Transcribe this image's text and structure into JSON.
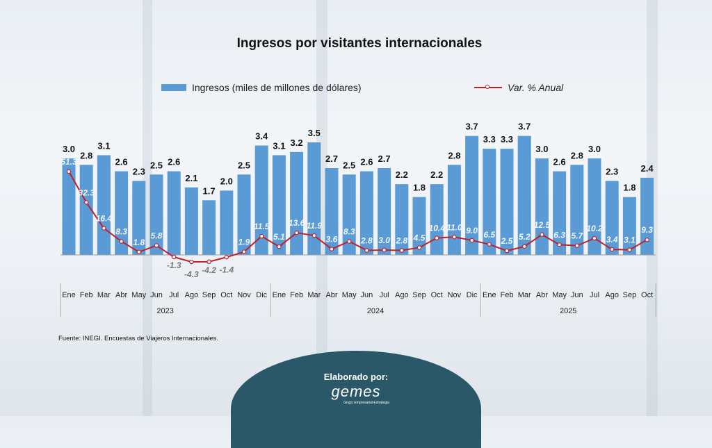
{
  "chart_data": {
    "type": "bar",
    "title": "Ingresos por visitantes internacionales",
    "categories": [
      "Ene",
      "Feb",
      "Mar",
      "Abr",
      "May",
      "Jun",
      "Jul",
      "Ago",
      "Sep",
      "Oct",
      "Nov",
      "Dic",
      "Ene",
      "Feb",
      "Mar",
      "Abr",
      "May",
      "Jun",
      "Jul",
      "Ago",
      "Sep",
      "Oct",
      "Nov",
      "Dic",
      "Ene",
      "Feb",
      "Mar",
      "Abr",
      "May",
      "Jun",
      "Jul",
      "Ago",
      "Sep",
      "Oct"
    ],
    "years": [
      {
        "label": "2023",
        "count": 12
      },
      {
        "label": "2024",
        "count": 12
      },
      {
        "label": "2025",
        "count": 10
      }
    ],
    "series": [
      {
        "name": "Ingresos (miles de millones de dólares)",
        "type": "bar",
        "color": "#5b9bd5",
        "values": [
          3.0,
          2.8,
          3.1,
          2.6,
          2.3,
          2.5,
          2.6,
          2.1,
          1.7,
          2.0,
          2.5,
          3.4,
          3.1,
          3.2,
          3.5,
          2.7,
          2.5,
          2.6,
          2.7,
          2.2,
          1.8,
          2.2,
          2.8,
          3.7,
          3.3,
          3.3,
          3.7,
          3.0,
          2.6,
          2.8,
          3.0,
          2.3,
          1.8,
          2.4
        ]
      },
      {
        "name": "Var. % Anual",
        "type": "line",
        "color": "#c0202a",
        "values": [
          51.3,
          32.3,
          16.4,
          8.3,
          1.8,
          5.8,
          -1.3,
          -4.3,
          -4.2,
          -1.4,
          1.9,
          11.5,
          5.1,
          13.6,
          11.9,
          3.6,
          8.3,
          2.8,
          3.0,
          2.8,
          4.5,
          10.4,
          11.0,
          9.0,
          6.5,
          2.5,
          5.2,
          12.5,
          6.3,
          5.7,
          10.2,
          3.4,
          3.1,
          9.3
        ]
      }
    ],
    "legend": "top"
  },
  "source": "Fuente: INEGI. Encuestas de Viajeros Internacionales.",
  "credit": {
    "label": "Elaborado por:",
    "logo": "gemes",
    "logo_sub": "Grupo Empresarial Estrategia"
  }
}
